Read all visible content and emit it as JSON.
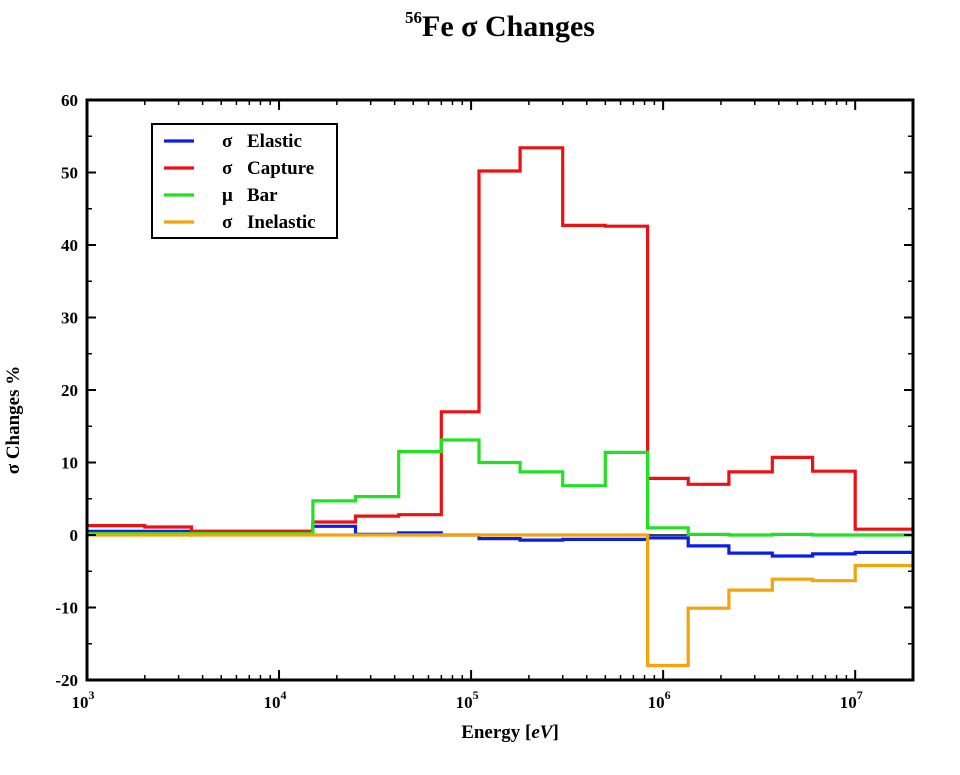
{
  "chart_data": {
    "type": "line",
    "title": {
      "superscript": "56",
      "text": "Fe σ  Changes"
    },
    "xlabel": {
      "text": "Energy [",
      "italic": "eV",
      "close": "]"
    },
    "ylabel": "σ Changes %",
    "xscale": "log",
    "xlim": [
      1000,
      20000000
    ],
    "ylim": [
      -20,
      60
    ],
    "yticks": [
      -20,
      -10,
      0,
      10,
      20,
      30,
      40,
      50,
      60
    ],
    "xticks": [
      {
        "value": 1000,
        "base": "10",
        "exp": "3"
      },
      {
        "value": 10000,
        "base": "10",
        "exp": "4"
      },
      {
        "value": 100000,
        "base": "10",
        "exp": "5"
      },
      {
        "value": 1000000,
        "base": "10",
        "exp": "6"
      },
      {
        "value": 10000000,
        "base": "10",
        "exp": "7"
      }
    ],
    "grid": false,
    "legend_position": "top-left",
    "step": "post",
    "edges": [
      1000,
      2000,
      3500,
      15000,
      25000,
      42000,
      70000,
      110000,
      180000,
      300000,
      500000,
      830000,
      1350000,
      2200000,
      3700000,
      6000000,
      10000000,
      20000000
    ],
    "series": [
      {
        "name": "σ Elastic",
        "symbol": "σ",
        "label": "Elastic",
        "color": "#0a1fe6",
        "values": [
          0.5,
          0.5,
          0.5,
          1.2,
          0.1,
          0.3,
          0.0,
          -0.5,
          -0.7,
          -0.6,
          -0.6,
          -0.4,
          -1.5,
          -2.5,
          -2.9,
          -2.6,
          -2.4
        ]
      },
      {
        "name": "σ Capture",
        "symbol": "σ",
        "label": "Capture",
        "color": "#ee1111",
        "values": [
          1.3,
          1.1,
          0.5,
          1.8,
          2.6,
          2.8,
          17.0,
          50.2,
          53.4,
          42.7,
          42.6,
          7.8,
          7.0,
          8.7,
          10.7,
          8.8,
          0.8
        ]
      },
      {
        "name": "μ Bar",
        "symbol": "μ",
        "label": "Bar",
        "color": "#22e022",
        "values": [
          0.2,
          0.2,
          0.2,
          4.7,
          5.3,
          11.5,
          13.1,
          10.0,
          8.7,
          6.8,
          11.4,
          1.0,
          0.1,
          0.0,
          0.1,
          0.0,
          0.0
        ]
      },
      {
        "name": "σ Inelastic",
        "symbol": "σ",
        "label": "Inelastic",
        "color": "#f5a30a",
        "values": [
          0.0,
          0.0,
          0.0,
          0.0,
          0.0,
          0.0,
          0.0,
          0.0,
          0.0,
          0.0,
          0.0,
          -18.0,
          -10.1,
          -7.6,
          -6.1,
          -6.3,
          -4.2
        ]
      }
    ]
  }
}
